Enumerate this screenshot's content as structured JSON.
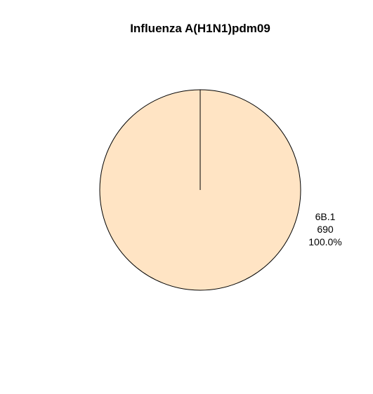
{
  "chart_data": {
    "type": "pie",
    "title": "Influenza A(H1N1)pdm09",
    "slices": [
      {
        "name": "6B.1",
        "value": 690,
        "percent_label": "100.0%",
        "value_label": "690",
        "color": "#FFE4C4"
      }
    ],
    "stroke_color": "#000000",
    "label_placement": "right"
  }
}
